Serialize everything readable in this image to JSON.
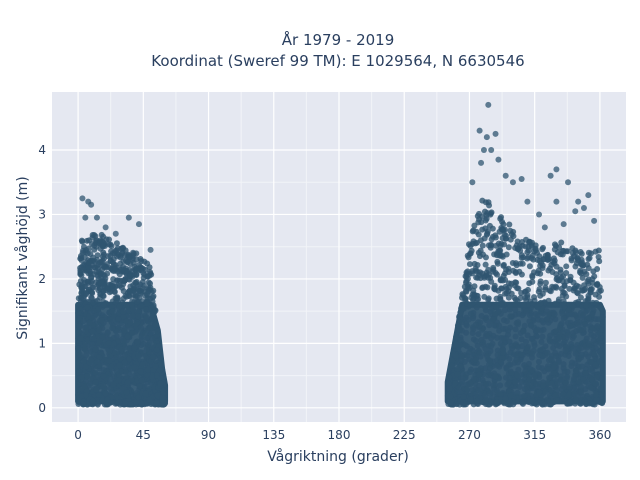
{
  "chart_data": {
    "type": "scatter",
    "title_line1": "År 1979 - 2019",
    "title_line2": "Koordinat (Sweref 99 TM): E 1029564, N 6630546",
    "xlabel": "Vågriktning (grader)",
    "ylabel": "Signifikant våghöjd (m)",
    "xlim": [
      -18,
      378
    ],
    "ylim": [
      -0.22,
      4.9
    ],
    "x_ticks": [
      0,
      45,
      90,
      135,
      180,
      225,
      270,
      315,
      360
    ],
    "y_ticks": [
      0,
      1,
      2,
      3,
      4
    ],
    "grid": true,
    "point_color": "#2f5570",
    "plot_background": "#e5e8f1",
    "clusters": [
      {
        "x_range": [
          0,
          60
        ],
        "envelope": [
          [
            0,
            2.6
          ],
          [
            10,
            2.7
          ],
          [
            20,
            2.7
          ],
          [
            30,
            2.5
          ],
          [
            40,
            2.4
          ],
          [
            50,
            2.2
          ],
          [
            55,
            1.2
          ],
          [
            58,
            0.6
          ],
          [
            60,
            0.35
          ]
        ],
        "outliers": [
          [
            3,
            3.25
          ],
          [
            5,
            2.95
          ],
          [
            7,
            3.2
          ],
          [
            9,
            3.15
          ],
          [
            13,
            2.95
          ],
          [
            19,
            2.8
          ],
          [
            26,
            2.7
          ],
          [
            35,
            2.95
          ],
          [
            42,
            2.85
          ],
          [
            50,
            2.45
          ]
        ]
      },
      {
        "x_range": [
          255,
          362
        ],
        "envelope": [
          [
            255,
            0.4
          ],
          [
            260,
            1.0
          ],
          [
            265,
            1.8
          ],
          [
            270,
            2.6
          ],
          [
            275,
            3.1
          ],
          [
            280,
            3.3
          ],
          [
            290,
            3.0
          ],
          [
            300,
            2.8
          ],
          [
            310,
            2.6
          ],
          [
            320,
            2.5
          ],
          [
            330,
            2.6
          ],
          [
            340,
            2.5
          ],
          [
            350,
            2.4
          ],
          [
            360,
            2.5
          ],
          [
            362,
            1.5
          ]
        ],
        "outliers": [
          [
            283,
            4.7
          ],
          [
            277,
            4.3
          ],
          [
            282,
            4.2
          ],
          [
            288,
            4.25
          ],
          [
            280,
            4.0
          ],
          [
            285,
            4.0
          ],
          [
            278,
            3.8
          ],
          [
            272,
            3.5
          ],
          [
            290,
            3.85
          ],
          [
            295,
            3.6
          ],
          [
            300,
            3.5
          ],
          [
            306,
            3.55
          ],
          [
            310,
            3.2
          ],
          [
            318,
            3.0
          ],
          [
            326,
            3.6
          ],
          [
            330,
            3.7
          ],
          [
            338,
            3.5
          ],
          [
            330,
            3.2
          ],
          [
            345,
            3.2
          ],
          [
            352,
            3.3
          ],
          [
            349,
            3.1
          ],
          [
            343,
            3.05
          ],
          [
            356,
            2.9
          ],
          [
            335,
            2.85
          ],
          [
            322,
            2.8
          ]
        ]
      }
    ]
  }
}
